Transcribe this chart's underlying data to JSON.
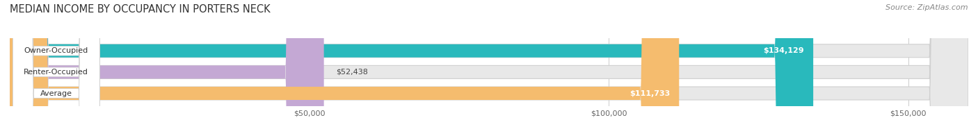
{
  "title": "MEDIAN INCOME BY OCCUPANCY IN PORTERS NECK",
  "source": "Source: ZipAtlas.com",
  "categories": [
    "Owner-Occupied",
    "Renter-Occupied",
    "Average"
  ],
  "values": [
    134129,
    52438,
    111733
  ],
  "labels": [
    "$134,129",
    "$52,438",
    "$111,733"
  ],
  "bar_colors": [
    "#29b9bc",
    "#c4a8d4",
    "#f5bc6e"
  ],
  "bg_bar_color": "#e8e8e8",
  "xlim_max": 160000,
  "xticks": [
    50000,
    100000,
    150000
  ],
  "xticklabels": [
    "$50,000",
    "$100,000",
    "$150,000"
  ],
  "title_fontsize": 10.5,
  "source_fontsize": 8,
  "label_fontsize": 8,
  "cat_fontsize": 8,
  "background_color": "#ffffff",
  "bar_height": 0.62,
  "label_threshold": 80000
}
